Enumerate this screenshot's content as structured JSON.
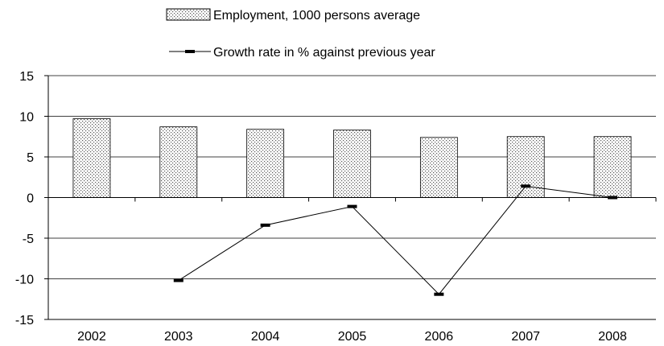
{
  "chart_data": {
    "type": "bar",
    "categories": [
      "2002",
      "2003",
      "2004",
      "2005",
      "2006",
      "2007",
      "2008"
    ],
    "series": [
      {
        "name": "Employment, 1000 persons average",
        "kind": "bar",
        "values": [
          9.7,
          8.7,
          8.4,
          8.3,
          7.4,
          7.5,
          7.5
        ]
      },
      {
        "name": "Growth rate in % against previous year",
        "kind": "line",
        "values": [
          null,
          -10.2,
          -3.4,
          -1.1,
          -11.9,
          1.4,
          0.0
        ]
      }
    ],
    "ylim": [
      -15,
      15
    ],
    "yticks": [
      "15",
      "10",
      "5",
      "0",
      "-5",
      "-10",
      "-15"
    ],
    "grid": true,
    "legend_position": "top-center",
    "title": "",
    "xlabel": "",
    "ylabel": ""
  },
  "colors": {
    "bar_dot": "#555555",
    "bar_bg": "#ffffff",
    "line": "#000000",
    "grid": "#000000"
  }
}
